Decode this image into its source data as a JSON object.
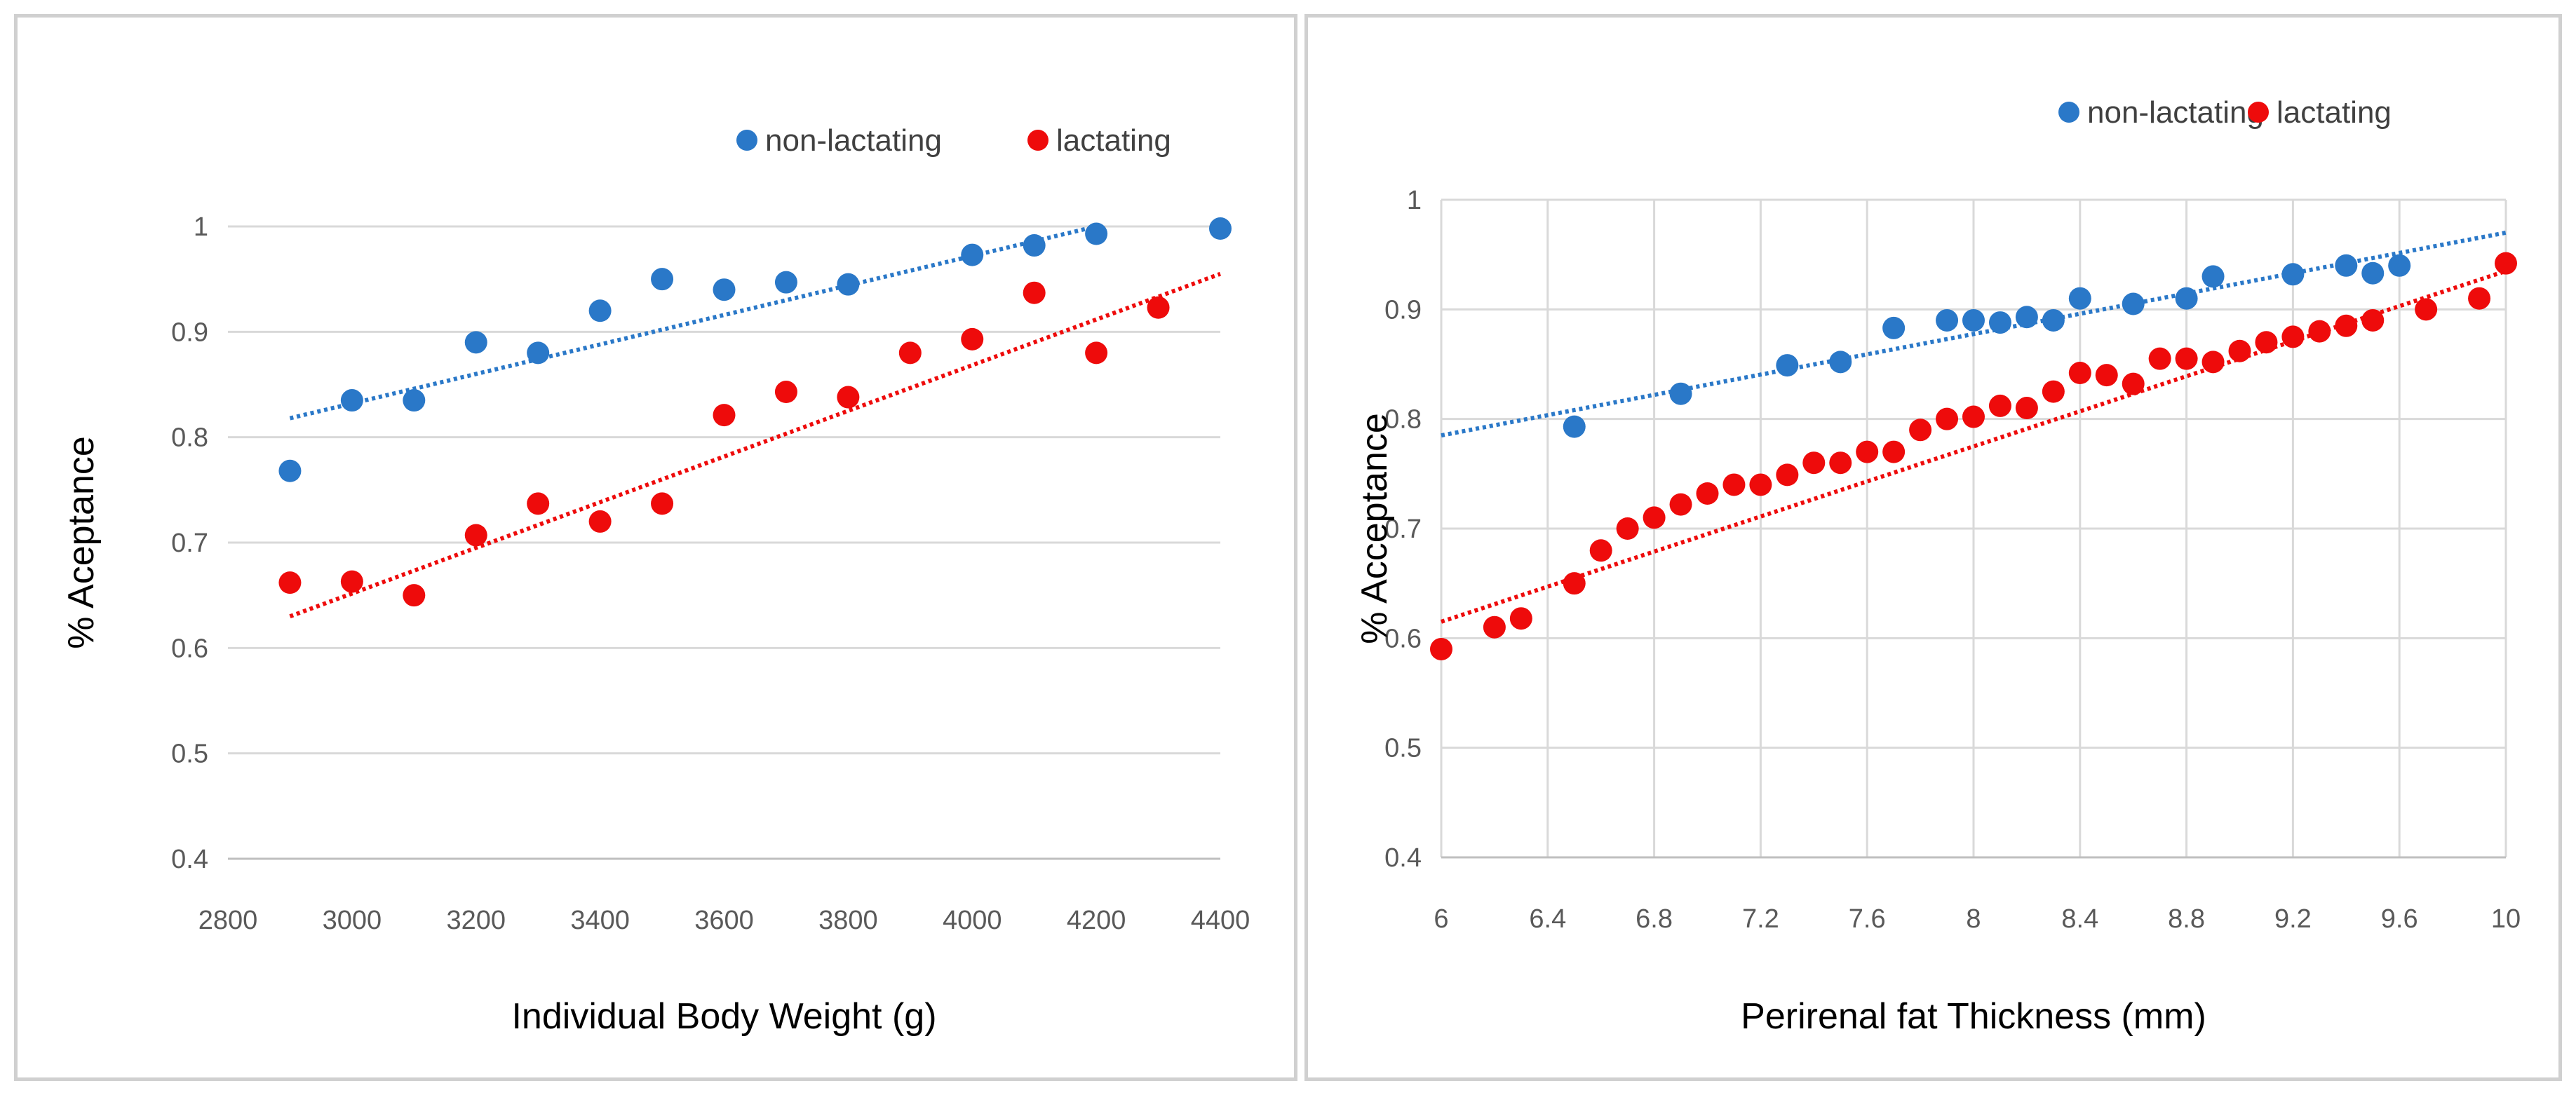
{
  "colors": {
    "non_lactating": "#2a78c8",
    "lactating": "#ee0b0b",
    "grid": "#d9d9d9",
    "tick_text": "#595959",
    "border": "#d0d0d0"
  },
  "chart_data": [
    {
      "type": "scatter",
      "title": "",
      "xlabel": "Individual Body Weight (g)",
      "ylabel": "% Aceptance",
      "xlim": [
        2800,
        4400
      ],
      "ylim": [
        0.4,
        1
      ],
      "x_ticks": [
        "2800",
        "3000",
        "3200",
        "3400",
        "3600",
        "3800",
        "4000",
        "4200",
        "4400"
      ],
      "y_ticks": [
        "0.4",
        "0.5",
        "0.6",
        "0.7",
        "0.8",
        "0.9",
        "1"
      ],
      "grid": "horizontal",
      "legend": "top-right",
      "series": [
        {
          "name": "non-lactating",
          "color": "#2a78c8",
          "points": [
            [
              2900,
              0.768
            ],
            [
              3000,
              0.835
            ],
            [
              3100,
              0.835
            ],
            [
              3200,
              0.89
            ],
            [
              3300,
              0.88
            ],
            [
              3400,
              0.92
            ],
            [
              3500,
              0.95
            ],
            [
              3600,
              0.94
            ],
            [
              3700,
              0.947
            ],
            [
              3800,
              0.945
            ],
            [
              4000,
              0.973
            ],
            [
              4100,
              0.982
            ],
            [
              4200,
              0.993
            ],
            [
              4400,
              0.998
            ]
          ],
          "trendline": [
            [
              2900,
              0.818
            ],
            [
              4200,
              1.0
            ]
          ]
        },
        {
          "name": "lactating",
          "color": "#ee0b0b",
          "points": [
            [
              2900,
              0.662
            ],
            [
              3000,
              0.663
            ],
            [
              3100,
              0.65
            ],
            [
              3200,
              0.707
            ],
            [
              3300,
              0.737
            ],
            [
              3400,
              0.72
            ],
            [
              3500,
              0.737
            ],
            [
              3600,
              0.821
            ],
            [
              3700,
              0.843
            ],
            [
              3800,
              0.838
            ],
            [
              3900,
              0.88
            ],
            [
              4000,
              0.893
            ],
            [
              4100,
              0.937
            ],
            [
              4200,
              0.88
            ],
            [
              4300,
              0.923
            ]
          ],
          "trendline": [
            [
              2900,
              0.63
            ],
            [
              4400,
              0.955
            ]
          ]
        }
      ]
    },
    {
      "type": "scatter",
      "title": "",
      "xlabel": "Perirenal fat Thickness (mm)",
      "ylabel": "% Acceptance",
      "xlim": [
        6,
        10
      ],
      "ylim": [
        0.4,
        1
      ],
      "x_ticks": [
        "6",
        "6.4",
        "6.8",
        "7.2",
        "7.6",
        "8",
        "8.4",
        "8.8",
        "9.2",
        "9.6",
        "10"
      ],
      "y_ticks": [
        "0.4",
        "0.5",
        "0.6",
        "0.7",
        "0.8",
        "0.9",
        "1"
      ],
      "grid": "both",
      "legend": "top-right",
      "series": [
        {
          "name": "non-lactating",
          "color": "#2a78c8",
          "points": [
            [
              6.5,
              0.793
            ],
            [
              6.9,
              0.823
            ],
            [
              7.3,
              0.849
            ],
            [
              7.5,
              0.852
            ],
            [
              7.7,
              0.883
            ],
            [
              7.9,
              0.89
            ],
            [
              8.0,
              0.89
            ],
            [
              8.1,
              0.888
            ],
            [
              8.2,
              0.893
            ],
            [
              8.3,
              0.89
            ],
            [
              8.4,
              0.91
            ],
            [
              8.6,
              0.905
            ],
            [
              8.8,
              0.91
            ],
            [
              8.9,
              0.93
            ],
            [
              9.2,
              0.932
            ],
            [
              9.4,
              0.94
            ],
            [
              9.5,
              0.933
            ],
            [
              9.6,
              0.94
            ]
          ],
          "trendline": [
            [
              6.0,
              0.785
            ],
            [
              10.0,
              0.97
            ]
          ]
        },
        {
          "name": "lactating",
          "color": "#ee0b0b",
          "points": [
            [
              6.0,
              0.59
            ],
            [
              6.2,
              0.61
            ],
            [
              6.3,
              0.618
            ],
            [
              6.5,
              0.65
            ],
            [
              6.6,
              0.68
            ],
            [
              6.7,
              0.7
            ],
            [
              6.8,
              0.71
            ],
            [
              6.9,
              0.722
            ],
            [
              7.0,
              0.732
            ],
            [
              7.1,
              0.74
            ],
            [
              7.2,
              0.74
            ],
            [
              7.3,
              0.749
            ],
            [
              7.4,
              0.76
            ],
            [
              7.5,
              0.76
            ],
            [
              7.6,
              0.77
            ],
            [
              7.7,
              0.77
            ],
            [
              7.8,
              0.79
            ],
            [
              7.9,
              0.8
            ],
            [
              8.0,
              0.802
            ],
            [
              8.1,
              0.812
            ],
            [
              8.2,
              0.81
            ],
            [
              8.3,
              0.825
            ],
            [
              8.4,
              0.842
            ],
            [
              8.5,
              0.84
            ],
            [
              8.6,
              0.832
            ],
            [
              8.7,
              0.855
            ],
            [
              8.8,
              0.855
            ],
            [
              8.9,
              0.852
            ],
            [
              9.0,
              0.862
            ],
            [
              9.1,
              0.87
            ],
            [
              9.2,
              0.875
            ],
            [
              9.3,
              0.88
            ],
            [
              9.4,
              0.885
            ],
            [
              9.5,
              0.89
            ],
            [
              9.7,
              0.9
            ],
            [
              9.9,
              0.91
            ],
            [
              10.0,
              0.942
            ]
          ],
          "trendline": [
            [
              6.0,
              0.615
            ],
            [
              10.0,
              0.935
            ]
          ]
        }
      ]
    }
  ]
}
